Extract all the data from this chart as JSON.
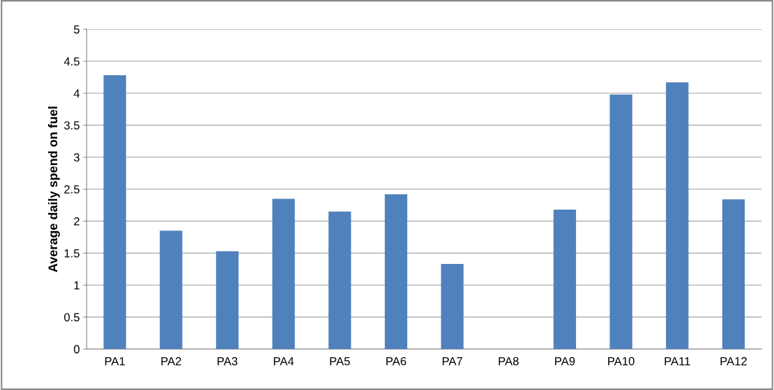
{
  "chart_data": {
    "type": "bar",
    "ylabel": "Average daily spend on fuel",
    "categories": [
      "PA1",
      "PA2",
      "PA3",
      "PA4",
      "PA5",
      "PA6",
      "PA7",
      "PA8",
      "PA9",
      "PA10",
      "PA11",
      "PA12"
    ],
    "values": [
      4.28,
      1.85,
      1.53,
      2.35,
      2.15,
      2.42,
      1.33,
      0,
      2.18,
      3.98,
      4.17,
      2.34
    ],
    "color": "#4f81bd",
    "ylim": [
      0,
      5
    ],
    "yticks": [
      0,
      0.5,
      1,
      1.5,
      2,
      2.5,
      3,
      3.5,
      4,
      4.5,
      5
    ],
    "grid": "y"
  }
}
